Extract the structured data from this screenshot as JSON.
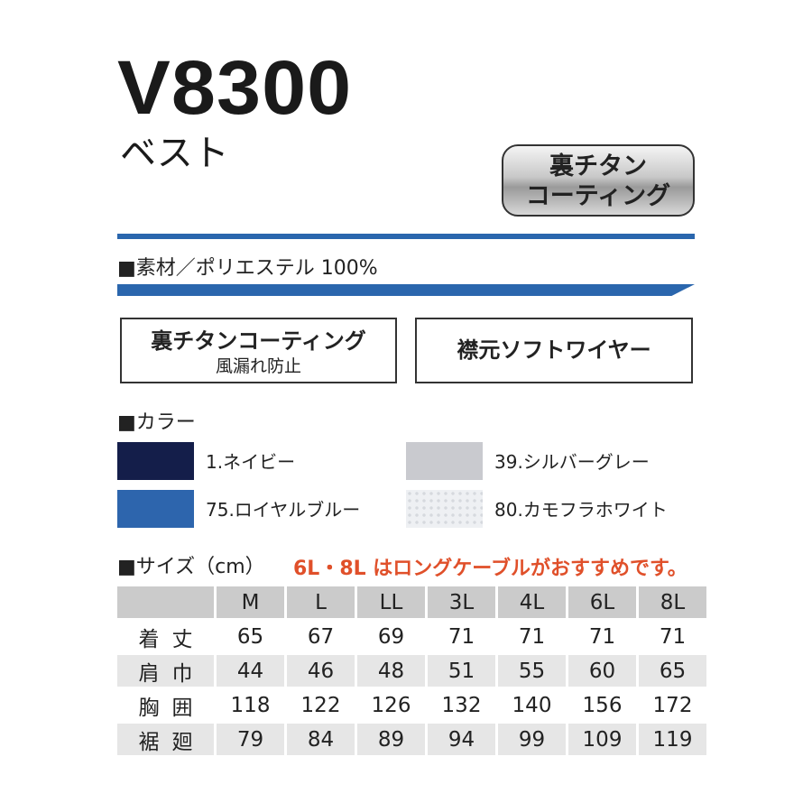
{
  "header": {
    "model": "V8300",
    "type": "ベスト"
  },
  "badge": {
    "line1": "裏チタン",
    "line2": "コーティング"
  },
  "material": "■素材／ポリエステル 100%",
  "features": [
    {
      "title": "裏チタンコーティング",
      "sub": "風漏れ防止"
    },
    {
      "title": "襟元ソフトワイヤー"
    }
  ],
  "colors": {
    "heading": "■カラー",
    "items": [
      {
        "label": "1.ネイビー",
        "color": "#141e4a"
      },
      {
        "label": "39.シルバーグレー",
        "color": "#c9cacf"
      },
      {
        "label": "75.ロイヤルブルー",
        "color": "#2d65ad"
      },
      {
        "label": "80.カモフラホワイト",
        "color": "#eef0f3"
      }
    ]
  },
  "sizes": {
    "heading": "■サイズ（cm）",
    "note": "6L・8L はロングケーブルがおすすめです。",
    "columns": [
      "M",
      "L",
      "LL",
      "3L",
      "4L",
      "6L",
      "8L"
    ],
    "rows": [
      {
        "label": "着丈",
        "values": [
          "65",
          "67",
          "69",
          "71",
          "71",
          "71",
          "71"
        ]
      },
      {
        "label": "肩巾",
        "values": [
          "44",
          "46",
          "48",
          "51",
          "55",
          "60",
          "65"
        ]
      },
      {
        "label": "胸囲",
        "values": [
          "118",
          "122",
          "126",
          "132",
          "140",
          "156",
          "172"
        ]
      },
      {
        "label": "裾廻",
        "values": [
          "79",
          "84",
          "89",
          "94",
          "99",
          "109",
          "119"
        ]
      }
    ]
  }
}
